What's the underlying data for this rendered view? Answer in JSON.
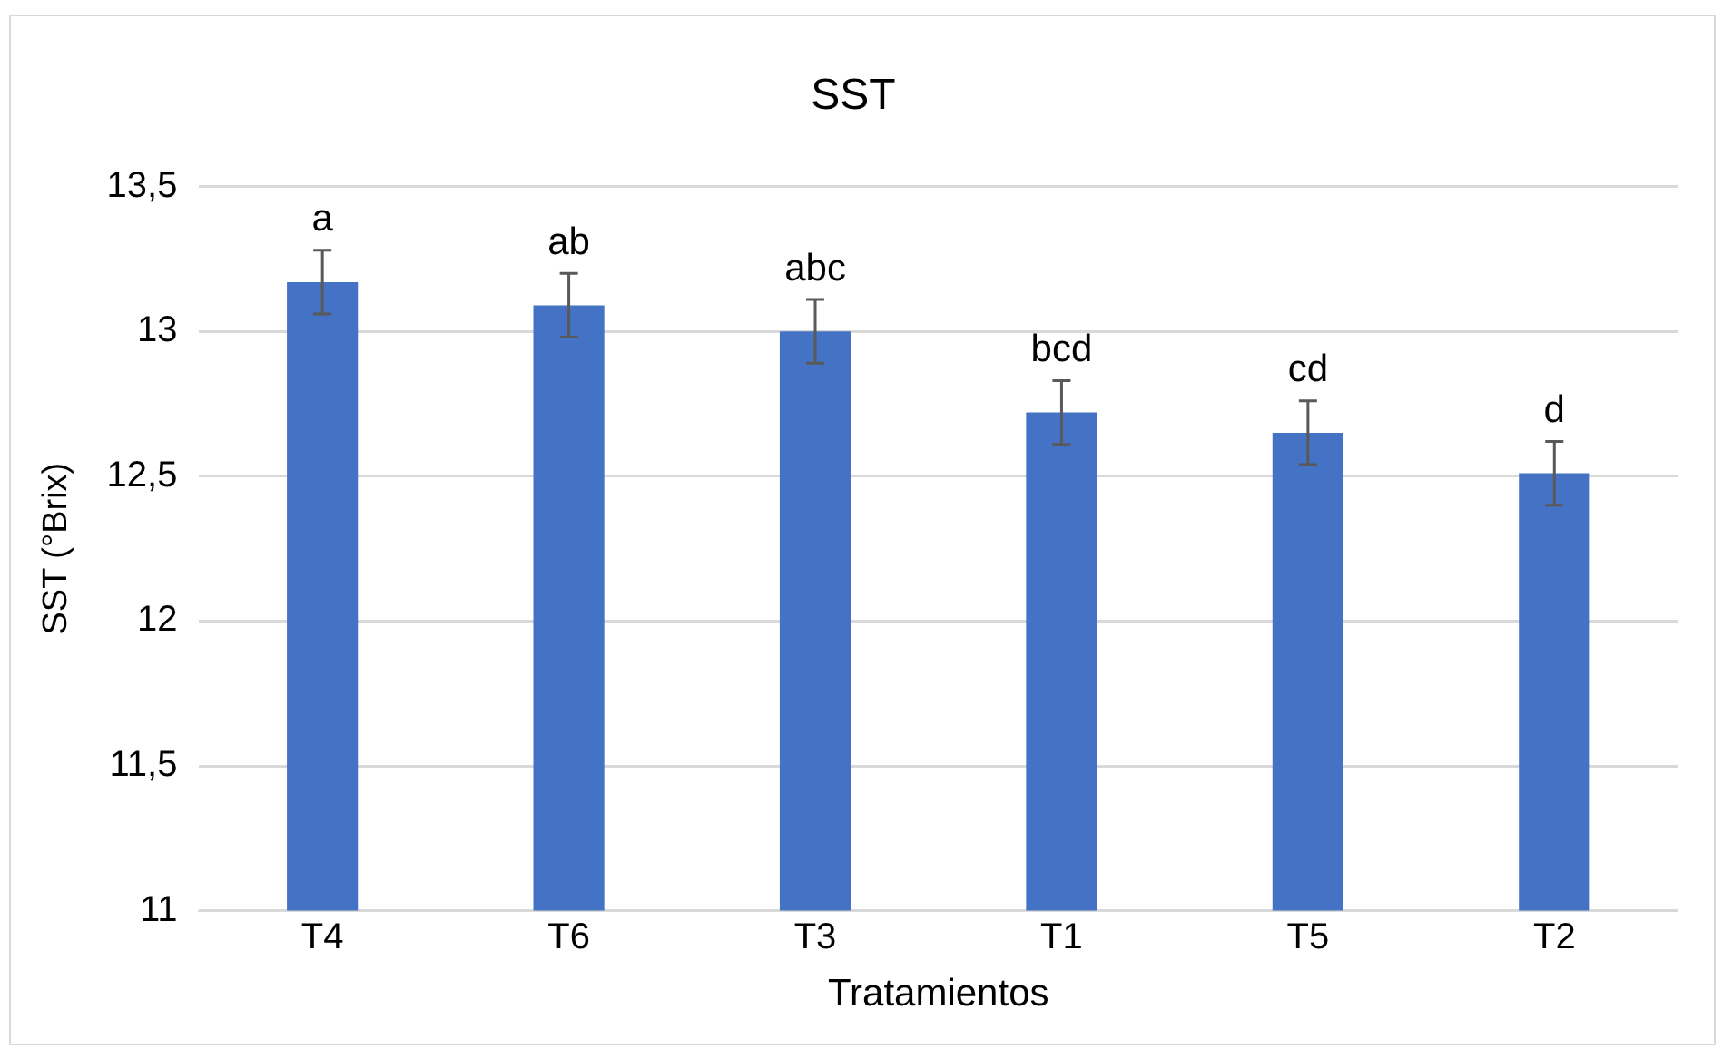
{
  "chart_data": {
    "type": "bar",
    "title": "SST",
    "xlabel": "Tratamientos",
    "ylabel": "SST (°Brix)",
    "categories": [
      "T4",
      "T6",
      "T3",
      "T1",
      "T5",
      "T2"
    ],
    "values": [
      13.17,
      13.09,
      13.0,
      12.72,
      12.65,
      12.51
    ],
    "errors": [
      0.11,
      0.11,
      0.11,
      0.11,
      0.11,
      0.11
    ],
    "color": "#4472c4",
    "ylim": [
      11,
      13.5
    ],
    "yticks": [
      {
        "value": 11,
        "label": "11"
      },
      {
        "value": 11.5,
        "label": "11,5"
      },
      {
        "value": 12,
        "label": "12"
      },
      {
        "value": 12.5,
        "label": "12,5"
      },
      {
        "value": 13,
        "label": "13"
      },
      {
        "value": 13.5,
        "label": "13,5"
      }
    ],
    "grid": "y",
    "legend": false,
    "annotations": [
      {
        "text": "a",
        "x": "T4",
        "y": 13.28
      },
      {
        "text": "ab",
        "x": "T6",
        "y": 13.2
      },
      {
        "text": "abc",
        "x": "T3",
        "y": 13.11
      },
      {
        "text": "bcd",
        "x": "T1",
        "y": 12.83
      },
      {
        "text": "cd",
        "x": "T5",
        "y": 12.76
      },
      {
        "text": "d",
        "x": "T2",
        "y": 12.62
      }
    ]
  }
}
